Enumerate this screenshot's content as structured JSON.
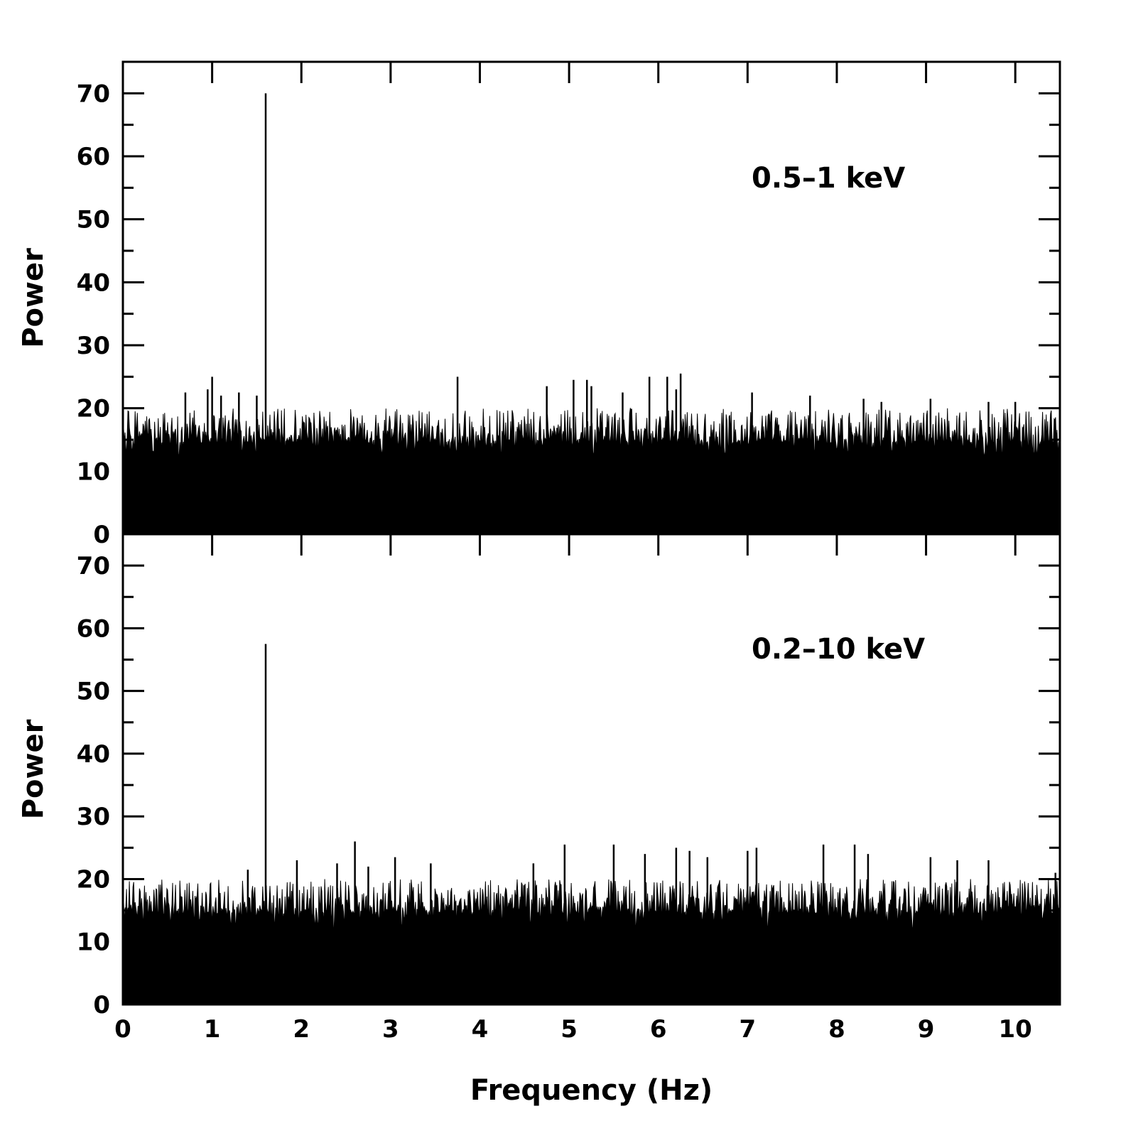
{
  "chart_data": [
    {
      "type": "bar",
      "panel": "top",
      "xlabel": "",
      "ylabel": "Power",
      "annotation": "0.5–1 keV",
      "xlim": [
        0,
        10.5
      ],
      "ylim": [
        0,
        75
      ],
      "xticks": [
        "0",
        "1",
        "2",
        "3",
        "4",
        "5",
        "6",
        "7",
        "8",
        "9",
        "10"
      ],
      "yticks": [
        "0",
        "10",
        "20",
        "30",
        "40",
        "50",
        "60",
        "70"
      ],
      "baseline_range": [
        13,
        20
      ],
      "peaks": [
        {
          "x": 1.6,
          "y": 70
        },
        {
          "x": 1.0,
          "y": 25
        },
        {
          "x": 0.95,
          "y": 23
        },
        {
          "x": 1.1,
          "y": 22
        },
        {
          "x": 1.3,
          "y": 22.5
        },
        {
          "x": 1.5,
          "y": 22
        },
        {
          "x": 0.7,
          "y": 22.5
        },
        {
          "x": 3.75,
          "y": 25
        },
        {
          "x": 4.75,
          "y": 23.5
        },
        {
          "x": 5.05,
          "y": 24.5
        },
        {
          "x": 5.2,
          "y": 24.5
        },
        {
          "x": 5.25,
          "y": 23.5
        },
        {
          "x": 5.6,
          "y": 22.5
        },
        {
          "x": 5.9,
          "y": 25
        },
        {
          "x": 6.1,
          "y": 25
        },
        {
          "x": 6.25,
          "y": 25.5
        },
        {
          "x": 6.2,
          "y": 23
        },
        {
          "x": 7.05,
          "y": 22.5
        },
        {
          "x": 7.7,
          "y": 22
        },
        {
          "x": 8.3,
          "y": 21.5
        },
        {
          "x": 8.5,
          "y": 21
        },
        {
          "x": 9.05,
          "y": 21.5
        },
        {
          "x": 9.7,
          "y": 21
        },
        {
          "x": 10.0,
          "y": 21
        }
      ]
    },
    {
      "type": "bar",
      "panel": "bottom",
      "xlabel": "Frequency (Hz)",
      "ylabel": "Power",
      "annotation": "0.2–10 keV",
      "xlim": [
        0,
        10.5
      ],
      "ylim": [
        0,
        75
      ],
      "xticks": [
        "0",
        "1",
        "2",
        "3",
        "4",
        "5",
        "6",
        "7",
        "8",
        "9",
        "10"
      ],
      "yticks": [
        "0",
        "10",
        "20",
        "30",
        "40",
        "50",
        "60",
        "70"
      ],
      "baseline_range": [
        13,
        20
      ],
      "peaks": [
        {
          "x": 1.6,
          "y": 57.5
        },
        {
          "x": 1.4,
          "y": 21.5
        },
        {
          "x": 1.95,
          "y": 23
        },
        {
          "x": 2.6,
          "y": 26
        },
        {
          "x": 2.4,
          "y": 22.5
        },
        {
          "x": 2.75,
          "y": 22
        },
        {
          "x": 3.05,
          "y": 23.5
        },
        {
          "x": 3.45,
          "y": 22.5
        },
        {
          "x": 4.95,
          "y": 25.5
        },
        {
          "x": 4.6,
          "y": 22.5
        },
        {
          "x": 5.5,
          "y": 25.5
        },
        {
          "x": 5.85,
          "y": 24
        },
        {
          "x": 6.2,
          "y": 25
        },
        {
          "x": 6.35,
          "y": 24.5
        },
        {
          "x": 6.55,
          "y": 23.5
        },
        {
          "x": 7.0,
          "y": 24.5
        },
        {
          "x": 7.1,
          "y": 25
        },
        {
          "x": 7.85,
          "y": 25.5
        },
        {
          "x": 8.2,
          "y": 25.5
        },
        {
          "x": 8.35,
          "y": 24
        },
        {
          "x": 9.05,
          "y": 23.5
        },
        {
          "x": 9.35,
          "y": 23
        },
        {
          "x": 9.7,
          "y": 23
        },
        {
          "x": 10.45,
          "y": 21
        }
      ]
    }
  ]
}
